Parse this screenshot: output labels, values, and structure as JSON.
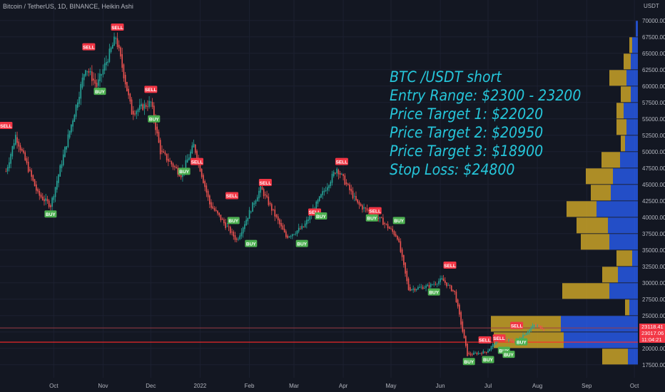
{
  "header": {
    "title": "Bitcoin / TetherUS, 1D, BINANCE, Heikin Ashi"
  },
  "annotation": {
    "lines": [
      "BTC /USDT short",
      "Entry Range: $2300 - 23200",
      "Price Target 1: $22020",
      "Price Target 2: $20950",
      "Price Target 3: $18900",
      "Stop Loss: $24800"
    ]
  },
  "colors": {
    "background": "#131722",
    "up": "#26a69a",
    "down": "#ef5350",
    "annotation": "#26c6da",
    "vp_up": "#2962ff",
    "vp_gold": "#c9a227",
    "buy": "#4caf50",
    "sell": "#f23645"
  },
  "chart_data": {
    "type": "candlestick",
    "price_unit": "USDT",
    "y_axis_ticks": [
      "70000.00",
      "67500.00",
      "65000.00",
      "62500.00",
      "60000.00",
      "57500.00",
      "55000.00",
      "52500.00",
      "50000.00",
      "47500.00",
      "45000.00",
      "42500.00",
      "40000.00",
      "37500.00",
      "35000.00",
      "32500.00",
      "30000.00",
      "27500.00",
      "25000.00",
      "22500.00",
      "20000.00",
      "17500.00"
    ],
    "x_axis_ticks": [
      "Oct",
      "Nov",
      "Dec",
      "2022",
      "Feb",
      "Mar",
      "Apr",
      "May",
      "Jun",
      "Jul",
      "Aug",
      "Sep",
      "Oct"
    ],
    "price_labels": [
      {
        "text": "23118.41",
        "value": 23118.41,
        "color": "#f23645"
      },
      {
        "text": "23017.06",
        "value": 23017.06,
        "color": "#f23645"
      },
      {
        "text": "11:04:21",
        "value": 22300,
        "color": "#f23645"
      }
    ],
    "horizontal_lines": [
      23118,
      20950
    ],
    "close_path": [
      {
        "date": "2021-09-01",
        "close": 47000
      },
      {
        "date": "2021-09-07",
        "close": 52500
      },
      {
        "date": "2021-09-21",
        "close": 43500
      },
      {
        "date": "2021-09-29",
        "close": 41800
      },
      {
        "date": "2021-10-15",
        "close": 57000
      },
      {
        "date": "2021-10-21",
        "close": 63000
      },
      {
        "date": "2021-10-28",
        "close": 60000
      },
      {
        "date": "2021-11-09",
        "close": 67500
      },
      {
        "date": "2021-11-19",
        "close": 56000
      },
      {
        "date": "2021-12-01",
        "close": 57500
      },
      {
        "date": "2021-12-07",
        "close": 50000
      },
      {
        "date": "2021-12-20",
        "close": 46500
      },
      {
        "date": "2021-12-28",
        "close": 51000
      },
      {
        "date": "2022-01-07",
        "close": 42000
      },
      {
        "date": "2022-01-24",
        "close": 36500
      },
      {
        "date": "2022-02-08",
        "close": 44500
      },
      {
        "date": "2022-02-24",
        "close": 37000
      },
      {
        "date": "2022-03-07",
        "close": 38500
      },
      {
        "date": "2022-03-28",
        "close": 47500
      },
      {
        "date": "2022-04-10",
        "close": 42000
      },
      {
        "date": "2022-04-25",
        "close": 39500
      },
      {
        "date": "2022-05-05",
        "close": 37000
      },
      {
        "date": "2022-05-12",
        "close": 29000
      },
      {
        "date": "2022-05-25",
        "close": 29500
      },
      {
        "date": "2022-06-02",
        "close": 30500
      },
      {
        "date": "2022-06-10",
        "close": 28500
      },
      {
        "date": "2022-06-18",
        "close": 19000
      },
      {
        "date": "2022-06-30",
        "close": 19500
      },
      {
        "date": "2022-07-08",
        "close": 21500
      },
      {
        "date": "2022-07-18",
        "close": 21000
      },
      {
        "date": "2022-07-30",
        "close": 23500
      },
      {
        "date": "2022-08-05",
        "close": 23100
      }
    ],
    "signals": [
      {
        "date": "2021-09-01",
        "type": "SELL",
        "price": 54000
      },
      {
        "date": "2021-09-29",
        "type": "BUY",
        "price": 40500
      },
      {
        "date": "2021-10-23",
        "type": "SELL",
        "price": 66000
      },
      {
        "date": "2021-10-30",
        "type": "BUY",
        "price": 59200
      },
      {
        "date": "2021-11-10",
        "type": "SELL",
        "price": 69000
      },
      {
        "date": "2021-12-01",
        "type": "SELL",
        "price": 59500
      },
      {
        "date": "2021-12-03",
        "type": "BUY",
        "price": 55000
      },
      {
        "date": "2021-12-22",
        "type": "BUY",
        "price": 47000
      },
      {
        "date": "2021-12-30",
        "type": "SELL",
        "price": 48500
      },
      {
        "date": "2022-01-21",
        "type": "SELL",
        "price": 43300
      },
      {
        "date": "2022-01-22",
        "type": "BUY",
        "price": 39500
      },
      {
        "date": "2022-02-02",
        "type": "BUY",
        "price": 36000
      },
      {
        "date": "2022-02-11",
        "type": "SELL",
        "price": 45300
      },
      {
        "date": "2022-03-06",
        "type": "BUY",
        "price": 36000
      },
      {
        "date": "2022-03-14",
        "type": "SELL",
        "price": 40800
      },
      {
        "date": "2022-03-18",
        "type": "BUY",
        "price": 40200
      },
      {
        "date": "2022-03-31",
        "type": "SELL",
        "price": 48500
      },
      {
        "date": "2022-04-19",
        "type": "BUY",
        "price": 39900
      },
      {
        "date": "2022-04-21",
        "type": "SELL",
        "price": 41000
      },
      {
        "date": "2022-05-06",
        "type": "BUY",
        "price": 39500
      },
      {
        "date": "2022-05-28",
        "type": "BUY",
        "price": 28600
      },
      {
        "date": "2022-06-07",
        "type": "SELL",
        "price": 32700
      },
      {
        "date": "2022-06-19",
        "type": "BUY",
        "price": 18000
      },
      {
        "date": "2022-06-29",
        "type": "SELL",
        "price": 21300
      },
      {
        "date": "2022-07-01",
        "type": "BUY",
        "price": 18300
      },
      {
        "date": "2022-07-08",
        "type": "SELL",
        "price": 21600
      },
      {
        "date": "2022-07-11",
        "type": "BUY",
        "price": 19700
      },
      {
        "date": "2022-07-14",
        "type": "BUY",
        "price": 19100
      },
      {
        "date": "2022-07-19",
        "type": "SELL",
        "price": 23500
      },
      {
        "date": "2022-07-22",
        "type": "BUY",
        "price": 21000
      }
    ],
    "volume_profile": [
      {
        "price": 68750,
        "gold": 0,
        "blue": 3
      },
      {
        "price": 66250,
        "gold": 4,
        "blue": 8
      },
      {
        "price": 63750,
        "gold": 10,
        "blue": 10
      },
      {
        "price": 61250,
        "gold": 24,
        "blue": 16
      },
      {
        "price": 58750,
        "gold": 14,
        "blue": 10
      },
      {
        "price": 56250,
        "gold": 10,
        "blue": 20
      },
      {
        "price": 53750,
        "gold": 14,
        "blue": 16
      },
      {
        "price": 51250,
        "gold": 6,
        "blue": 18
      },
      {
        "price": 48750,
        "gold": 26,
        "blue": 25
      },
      {
        "price": 46250,
        "gold": 38,
        "blue": 35
      },
      {
        "price": 43750,
        "gold": 28,
        "blue": 38
      },
      {
        "price": 41250,
        "gold": 42,
        "blue": 58
      },
      {
        "price": 38750,
        "gold": 44,
        "blue": 42
      },
      {
        "price": 36250,
        "gold": 40,
        "blue": 40
      },
      {
        "price": 33750,
        "gold": 22,
        "blue": 8
      },
      {
        "price": 31250,
        "gold": 22,
        "blue": 28
      },
      {
        "price": 28750,
        "gold": 66,
        "blue": 40
      },
      {
        "price": 26250,
        "gold": 6,
        "blue": 12
      },
      {
        "price": 23750,
        "gold": 98,
        "blue": 108
      },
      {
        "price": 21250,
        "gold": 98,
        "blue": 104
      },
      {
        "price": 18750,
        "gold": 36,
        "blue": 14
      }
    ],
    "ylim": [
      16500,
      71500
    ]
  }
}
